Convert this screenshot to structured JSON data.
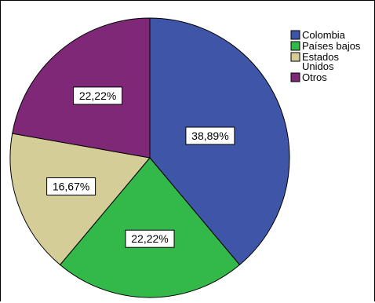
{
  "chart_data": {
    "type": "pie",
    "title": "",
    "start_angle_deg": 0,
    "direction": "clockwise",
    "legend_position": "top-right",
    "slices": [
      {
        "label": "Colombia",
        "legend_lines": [
          "Colombia"
        ],
        "value": 38.89,
        "value_label": "38,89%",
        "color": "#3F56A8"
      },
      {
        "label": "Países bajos",
        "legend_lines": [
          "Países bajos"
        ],
        "value": 22.22,
        "value_label": "22,22%",
        "color": "#33B84A"
      },
      {
        "label": "Estados Unidos",
        "legend_lines": [
          "Estados",
          "Unidos"
        ],
        "value": 16.67,
        "value_label": "16,67%",
        "color": "#D4CD97"
      },
      {
        "label": "Otros",
        "legend_lines": [
          "Otros"
        ],
        "value": 22.22,
        "value_label": "22,22%",
        "color": "#7F2878"
      }
    ]
  }
}
